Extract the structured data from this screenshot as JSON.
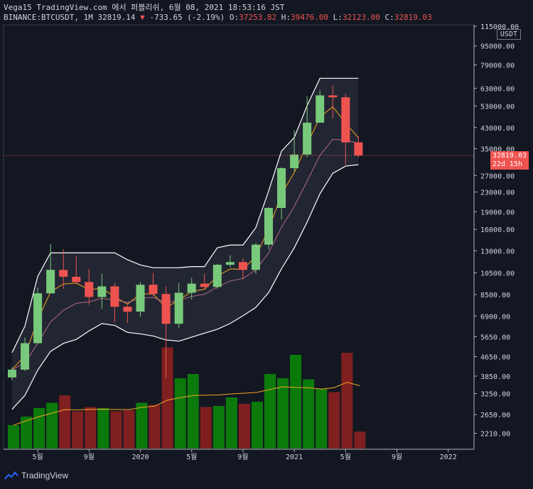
{
  "header": {
    "line1": "Vega15 TradingView.com 에서 퍼블리쉬, 6월 08, 2021 18:53:16 JST",
    "symbol": "BINANCE:BTCUSDT, 1M",
    "last": "32819.14",
    "change": "-733.65 (-2.19%)",
    "open_label": "O:",
    "open": "37253.82",
    "high_label": "H:",
    "high": "39476.00",
    "low_label": "L:",
    "low": "32123.00",
    "close_label": "C:",
    "close": "32819.03"
  },
  "price_axis": {
    "unit": "USDT",
    "ticks": [
      "115000.00",
      "95000.00",
      "79000.00",
      "63000.00",
      "53000.00",
      "43000.00",
      "35000.00",
      "27000.00",
      "23000.00",
      "19000.00",
      "16000.00",
      "13000.00",
      "10500.00",
      "8500.00",
      "6900.00",
      "5650.00",
      "4650.00",
      "3850.00",
      "3250.00",
      "2650.00",
      "2210.00"
    ],
    "last_price_tag": "32819.03",
    "countdown_tag": "22d 15h"
  },
  "time_axis": {
    "labels": [
      "5월",
      "9월",
      "2020",
      "5월",
      "9월",
      "2021",
      "5월",
      "9월",
      "2022"
    ]
  },
  "footer": {
    "brand": "TradingView"
  },
  "colors": {
    "up": "#79c97c",
    "down": "#ef5350",
    "vol_up": "#0b7a0b",
    "vol_down": "#7f1f1f",
    "band": "#ffffff",
    "ema_fast": "#f5a623",
    "ema_slow": "#b26b8a",
    "vol_ma": "#f5a623"
  },
  "chart_data": {
    "type": "candlestick",
    "interval": "1M",
    "x": [
      "2019-03",
      "2019-04",
      "2019-05",
      "2019-06",
      "2019-07",
      "2019-08",
      "2019-09",
      "2019-10",
      "2019-11",
      "2019-12",
      "2020-01",
      "2020-02",
      "2020-03",
      "2020-04",
      "2020-05",
      "2020-06",
      "2020-07",
      "2020-08",
      "2020-09",
      "2020-10",
      "2020-11",
      "2020-12",
      "2021-01",
      "2021-02",
      "2021-03",
      "2021-04",
      "2021-05",
      "2021-06"
    ],
    "candles": [
      {
        "o": 3800,
        "h": 4200,
        "l": 3700,
        "c": 4100
      },
      {
        "o": 4100,
        "h": 5600,
        "l": 4050,
        "c": 5300
      },
      {
        "o": 5300,
        "h": 9100,
        "l": 5300,
        "c": 8600
      },
      {
        "o": 8600,
        "h": 13900,
        "l": 8600,
        "c": 10800
      },
      {
        "o": 10800,
        "h": 13200,
        "l": 9000,
        "c": 10100
      },
      {
        "o": 10100,
        "h": 12300,
        "l": 9400,
        "c": 9600
      },
      {
        "o": 9600,
        "h": 10900,
        "l": 7700,
        "c": 8300
      },
      {
        "o": 8300,
        "h": 10400,
        "l": 7400,
        "c": 9200
      },
      {
        "o": 9200,
        "h": 9500,
        "l": 6500,
        "c": 7550
      },
      {
        "o": 7550,
        "h": 7700,
        "l": 6450,
        "c": 7200
      },
      {
        "o": 7200,
        "h": 9600,
        "l": 6850,
        "c": 9350
      },
      {
        "o": 9350,
        "h": 10500,
        "l": 8400,
        "c": 8550
      },
      {
        "o": 8550,
        "h": 9200,
        "l": 3780,
        "c": 6400
      },
      {
        "o": 6400,
        "h": 9500,
        "l": 6150,
        "c": 8650
      },
      {
        "o": 8650,
        "h": 10000,
        "l": 8100,
        "c": 9450
      },
      {
        "o": 9450,
        "h": 10400,
        "l": 8900,
        "c": 9150
      },
      {
        "o": 9150,
        "h": 11450,
        "l": 9000,
        "c": 11350
      },
      {
        "o": 11350,
        "h": 12450,
        "l": 11100,
        "c": 11650
      },
      {
        "o": 11650,
        "h": 12100,
        "l": 9850,
        "c": 10800
      },
      {
        "o": 10800,
        "h": 14000,
        "l": 10400,
        "c": 13800
      },
      {
        "o": 13800,
        "h": 19900,
        "l": 13200,
        "c": 19700
      },
      {
        "o": 19700,
        "h": 29300,
        "l": 17600,
        "c": 29000
      },
      {
        "o": 29000,
        "h": 41950,
        "l": 28100,
        "c": 33100
      },
      {
        "o": 33100,
        "h": 58350,
        "l": 32300,
        "c": 45100
      },
      {
        "o": 45100,
        "h": 61800,
        "l": 45000,
        "c": 58800
      },
      {
        "o": 58800,
        "h": 64850,
        "l": 47000,
        "c": 57700
      },
      {
        "o": 57700,
        "h": 59500,
        "l": 30000,
        "c": 37250
      },
      {
        "o": 37250,
        "h": 39476,
        "l": 32123,
        "c": 32819
      }
    ],
    "volume_rel": [
      0.22,
      0.3,
      0.38,
      0.43,
      0.5,
      0.35,
      0.39,
      0.38,
      0.35,
      0.36,
      0.43,
      0.41,
      0.95,
      0.66,
      0.7,
      0.39,
      0.4,
      0.48,
      0.42,
      0.44,
      0.7,
      0.66,
      0.88,
      0.65,
      0.56,
      0.53,
      0.9,
      0.16
    ],
    "price_scale": "log",
    "ylim": [
      2000,
      115000
    ]
  }
}
